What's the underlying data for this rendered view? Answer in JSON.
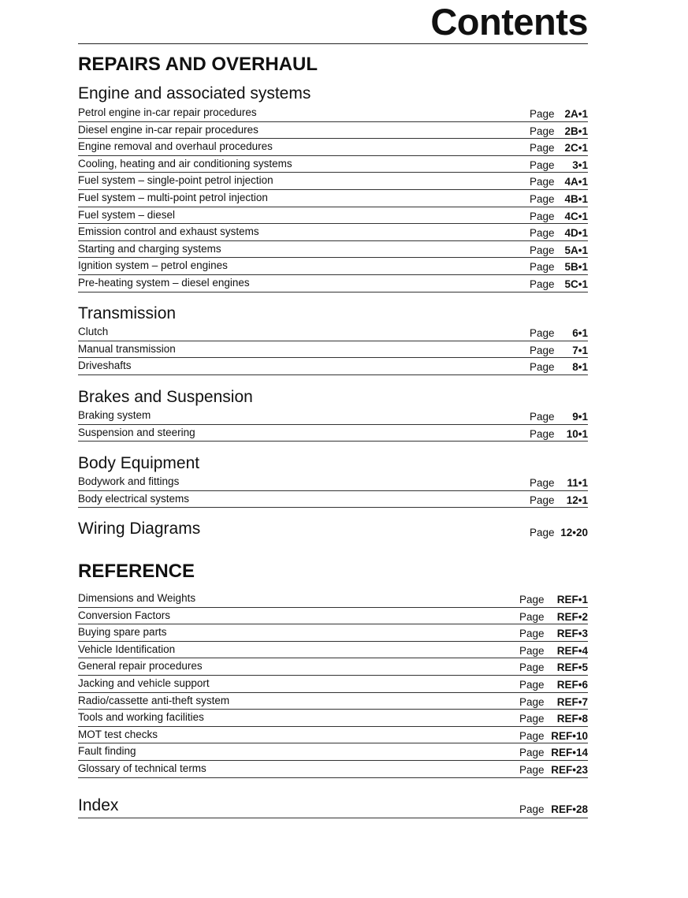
{
  "title": "Contents",
  "repairs": {
    "heading": "REPAIRS AND OVERHAUL",
    "sections": [
      {
        "heading": "Engine and associated systems",
        "items": [
          {
            "label": "Petrol engine in-car repair procedures",
            "page_label": "Page",
            "page": "2A•1"
          },
          {
            "label": "Diesel engine in-car repair procedures",
            "page_label": "Page",
            "page": "2B•1"
          },
          {
            "label": "Engine removal and overhaul procedures",
            "page_label": "Page",
            "page": "2C•1"
          },
          {
            "label": "Cooling, heating and air conditioning systems",
            "page_label": "Page",
            "page": "3•1"
          },
          {
            "label": "Fuel system – single-point petrol injection",
            "page_label": "Page",
            "page": "4A•1"
          },
          {
            "label": "Fuel system – multi-point petrol injection",
            "page_label": "Page",
            "page": "4B•1"
          },
          {
            "label": "Fuel system – diesel",
            "page_label": "Page",
            "page": "4C•1"
          },
          {
            "label": "Emission control and exhaust systems",
            "page_label": "Page",
            "page": "4D•1"
          },
          {
            "label": "Starting and charging systems",
            "page_label": "Page",
            "page": "5A•1"
          },
          {
            "label": "Ignition system – petrol engines",
            "page_label": "Page",
            "page": "5B•1"
          },
          {
            "label": "Pre-heating system – diesel engines",
            "page_label": "Page",
            "page": "5C•1"
          }
        ]
      },
      {
        "heading": "Transmission",
        "items": [
          {
            "label": "Clutch",
            "page_label": "Page",
            "page": "6•1"
          },
          {
            "label": "Manual transmission",
            "page_label": "Page",
            "page": "7•1"
          },
          {
            "label": "Driveshafts",
            "page_label": "Page",
            "page": "8•1"
          }
        ]
      },
      {
        "heading": "Brakes and Suspension",
        "items": [
          {
            "label": "Braking system",
            "page_label": "Page",
            "page": "9•1"
          },
          {
            "label": "Suspension and steering",
            "page_label": "Page",
            "page": "10•1"
          }
        ]
      },
      {
        "heading": "Body Equipment",
        "items": [
          {
            "label": "Bodywork and fittings",
            "page_label": "Page",
            "page": "11•1"
          },
          {
            "label": "Body electrical systems",
            "page_label": "Page",
            "page": "12•1"
          }
        ]
      }
    ],
    "wiring": {
      "heading": "Wiring Diagrams",
      "page_label": "Page",
      "page": "12•20"
    }
  },
  "reference": {
    "heading": "REFERENCE",
    "items": [
      {
        "label": "Dimensions and Weights",
        "page_label": "Page",
        "page": "REF•1"
      },
      {
        "label": "Conversion Factors",
        "page_label": "Page",
        "page": "REF•2"
      },
      {
        "label": "Buying spare parts",
        "page_label": "Page",
        "page": "REF•3"
      },
      {
        "label": "Vehicle Identification",
        "page_label": "Page",
        "page": "REF•4"
      },
      {
        "label": "General repair procedures",
        "page_label": "Page",
        "page": "REF•5"
      },
      {
        "label": "Jacking and vehicle support",
        "page_label": "Page",
        "page": "REF•6"
      },
      {
        "label": "Radio/cassette anti-theft system",
        "page_label": "Page",
        "page": "REF•7"
      },
      {
        "label": "Tools and working facilities",
        "page_label": "Page",
        "page": "REF•8"
      },
      {
        "label": "MOT test checks",
        "page_label": "Page",
        "page": "REF•10"
      },
      {
        "label": "Fault finding",
        "page_label": "Page",
        "page": "REF•14"
      },
      {
        "label": "Glossary of technical terms",
        "page_label": "Page",
        "page": "REF•23"
      }
    ],
    "index": {
      "heading": "Index",
      "page_label": "Page",
      "page": "REF•28"
    }
  }
}
